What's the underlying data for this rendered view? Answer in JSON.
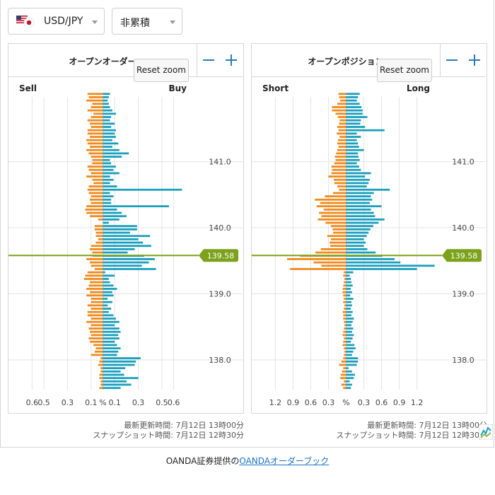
{
  "controls": {
    "pair": "USD/JPY",
    "mode": "非累積"
  },
  "colors": {
    "buy": "#1a9fbd",
    "sell": "#f08a1c",
    "current_price": "#7ba21a",
    "grid": "#e3e3e3"
  },
  "footer": {
    "prefix": "OANDA証券提供の",
    "link": "OANDAオーダーブック"
  },
  "chart_data": [
    {
      "type": "bar",
      "title": "オープンオーダー",
      "left_label": "Sell",
      "right_label": "Buy",
      "reset_label": "Reset zoom",
      "updated_text": "最新更新時間: 7月12日 13時00分",
      "snapshot_text": "スナップショット時間: 7月12日 12時30分",
      "current_price": 139.58,
      "current_price_label": "139.58",
      "y_range": [
        137.55,
        141.98
      ],
      "y_ticks": [
        141.0,
        140.0,
        139.0,
        138.0
      ],
      "y_tick_labels": [
        "141.0",
        "140.0",
        "139.0",
        "138.0"
      ],
      "x_range": [
        -0.8,
        0.8
      ],
      "x_ticks": [
        -0.6,
        -0.5,
        -0.3,
        -0.1,
        0,
        0.1,
        0.3,
        0.5,
        0.6
      ],
      "x_tick_labels": [
        "0.6",
        "0.5",
        "0.3",
        "0.1",
        "%",
        "0.1",
        "0.3",
        "0.5",
        "0.6"
      ],
      "bucket_size": 0.05,
      "series": [
        {
          "name": "Sell",
          "color": "#f08a1c",
          "values": [
            0.03,
            0.02,
            0.02,
            0.03,
            0.03,
            0.02,
            0.02,
            0.04,
            0.03,
            0.02,
            0.1,
            0.07,
            0.06,
            0.08,
            0.11,
            0.12,
            0.1,
            0.11,
            0.12,
            0.1,
            0.14,
            0.1,
            0.13,
            0.13,
            0.1,
            0.13,
            0.1,
            0.1,
            0.14,
            0.11,
            0.14,
            0.12,
            0.11,
            0.16,
            0.15,
            0.13,
            0.07,
            0.1,
            0.11,
            0.14,
            0.09,
            0.09,
            0.11,
            0.1,
            0.06,
            0.04,
            0.06,
            0.06,
            0.07,
            0.07,
            0.0,
            0.04,
            0.11,
            0.14,
            0.15,
            0.14,
            0.1,
            0.11,
            0.1,
            0.12,
            0.13,
            0.12,
            0.08,
            0.09,
            0.14,
            0.1,
            0.12,
            0.13,
            0.09,
            0.09,
            0.1,
            0.12,
            0.14,
            0.11,
            0.13,
            0.14,
            0.11,
            0.13,
            0.13,
            0.1,
            0.11,
            0.13,
            0.1,
            0.08,
            0.13,
            0.1,
            0.09,
            0.14,
            0.12,
            0.13
          ]
        },
        {
          "name": "Buy",
          "color": "#1a9fbd",
          "values": [
            0.15,
            0.24,
            0.2,
            0.3,
            0.18,
            0.15,
            0.19,
            0.27,
            0.28,
            0.32,
            0.12,
            0.13,
            0.15,
            0.12,
            0.1,
            0.14,
            0.13,
            0.15,
            0.14,
            0.1,
            0.14,
            0.11,
            0.09,
            0.05,
            0.07,
            0.04,
            0.08,
            0.04,
            0.09,
            0.08,
            0.12,
            0.09,
            0.06,
            0.05,
            0.1,
            0.02,
            0.45,
            0.33,
            0.39,
            0.44,
            0.35,
            0.21,
            0.27,
            0.41,
            0.34,
            0.3,
            0.4,
            0.23,
            0.29,
            0.29,
            0.05,
            0.14,
            0.2,
            0.16,
            0.12,
            0.56,
            0.07,
            0.07,
            0.09,
            0.06,
            0.67,
            0.12,
            0.06,
            0.09,
            0.06,
            0.14,
            0.09,
            0.11,
            0.07,
            0.06,
            0.16,
            0.22,
            0.14,
            0.08,
            0.13,
            0.08,
            0.11,
            0.1,
            0.11,
            0.07,
            0.1,
            0.06,
            0.07,
            0.11,
            0.08,
            0.06,
            0.05,
            0.04,
            0.05,
            0.06
          ]
        }
      ]
    },
    {
      "type": "bar",
      "title": "オープンポジション",
      "left_label": "Short",
      "right_label": "Long",
      "reset_label": "Reset zoom",
      "updated_text": "最新更新時間: 7月12日 13時00分",
      "snapshot_text": "スナップショット時間: 7月12日 12時30分",
      "current_price": 139.58,
      "current_price_label": "139.58",
      "y_range": [
        137.55,
        141.98
      ],
      "y_ticks": [
        141.0,
        140.0,
        139.0,
        138.0
      ],
      "y_tick_labels": [
        "141.0",
        "140.0",
        "139.0",
        "138.0"
      ],
      "x_range": [
        -1.6,
        1.6
      ],
      "x_ticks": [
        -1.2,
        -0.9,
        -0.6,
        -0.3,
        0,
        0.3,
        0.6,
        0.9,
        1.2
      ],
      "x_tick_labels": [
        "1.2",
        "0.9",
        "0.6",
        "0.3",
        "%",
        "0.3",
        "0.6",
        "0.9",
        "1.2"
      ],
      "bucket_size": 0.05,
      "series": [
        {
          "name": "Short",
          "color": "#f08a1c",
          "values": [
            0.05,
            0.08,
            0.04,
            0.1,
            0.09,
            0.07,
            0.05,
            0.12,
            0.08,
            0.05,
            0.04,
            0.03,
            0.04,
            0.06,
            0.05,
            0.04,
            0.06,
            0.05,
            0.04,
            0.03,
            0.04,
            0.05,
            0.05,
            0.06,
            0.04,
            0.03,
            0.05,
            0.04,
            0.05,
            0.06,
            0.06,
            0.05,
            0.04,
            0.03,
            0.05,
            0.04,
            0.95,
            0.42,
            0.55,
            1.0,
            0.78,
            0.52,
            0.43,
            0.27,
            0.28,
            0.26,
            0.32,
            0.22,
            0.23,
            0.26,
            0.35,
            0.48,
            0.42,
            0.46,
            0.38,
            0.5,
            0.44,
            0.53,
            0.36,
            0.22,
            0.12,
            0.15,
            0.2,
            0.21,
            0.3,
            0.25,
            0.24,
            0.25,
            0.2,
            0.18,
            0.19,
            0.17,
            0.15,
            0.13,
            0.15,
            0.14,
            0.11,
            0.16,
            0.13,
            0.15,
            0.12,
            0.11,
            0.14,
            0.18,
            0.24,
            0.24,
            0.15,
            0.1,
            0.12,
            0.13
          ]
        },
        {
          "name": "Long",
          "color": "#1a9fbd",
          "values": [
            0.08,
            0.1,
            0.06,
            0.13,
            0.15,
            0.1,
            0.04,
            0.18,
            0.2,
            0.2,
            0.1,
            0.12,
            0.16,
            0.14,
            0.08,
            0.11,
            0.13,
            0.1,
            0.12,
            0.09,
            0.11,
            0.13,
            0.09,
            0.11,
            0.08,
            0.1,
            0.09,
            0.12,
            0.07,
            0.1,
            0.08,
            0.11,
            0.09,
            0.08,
            0.06,
            0.12,
            1.2,
            1.5,
            0.92,
            0.82,
            0.61,
            0.5,
            0.36,
            0.3,
            0.33,
            0.3,
            0.35,
            0.38,
            0.41,
            0.46,
            0.55,
            0.65,
            0.49,
            0.47,
            0.42,
            0.6,
            0.4,
            0.44,
            0.42,
            0.47,
            0.74,
            0.35,
            0.38,
            0.4,
            0.32,
            0.42,
            0.25,
            0.22,
            0.18,
            0.23,
            0.21,
            0.2,
            0.3,
            0.22,
            0.2,
            0.18,
            0.25,
            0.18,
            0.65,
            0.32,
            0.24,
            0.25,
            0.36,
            0.28,
            0.28,
            0.26,
            0.23,
            0.18,
            0.2,
            0.23
          ]
        }
      ]
    }
  ]
}
